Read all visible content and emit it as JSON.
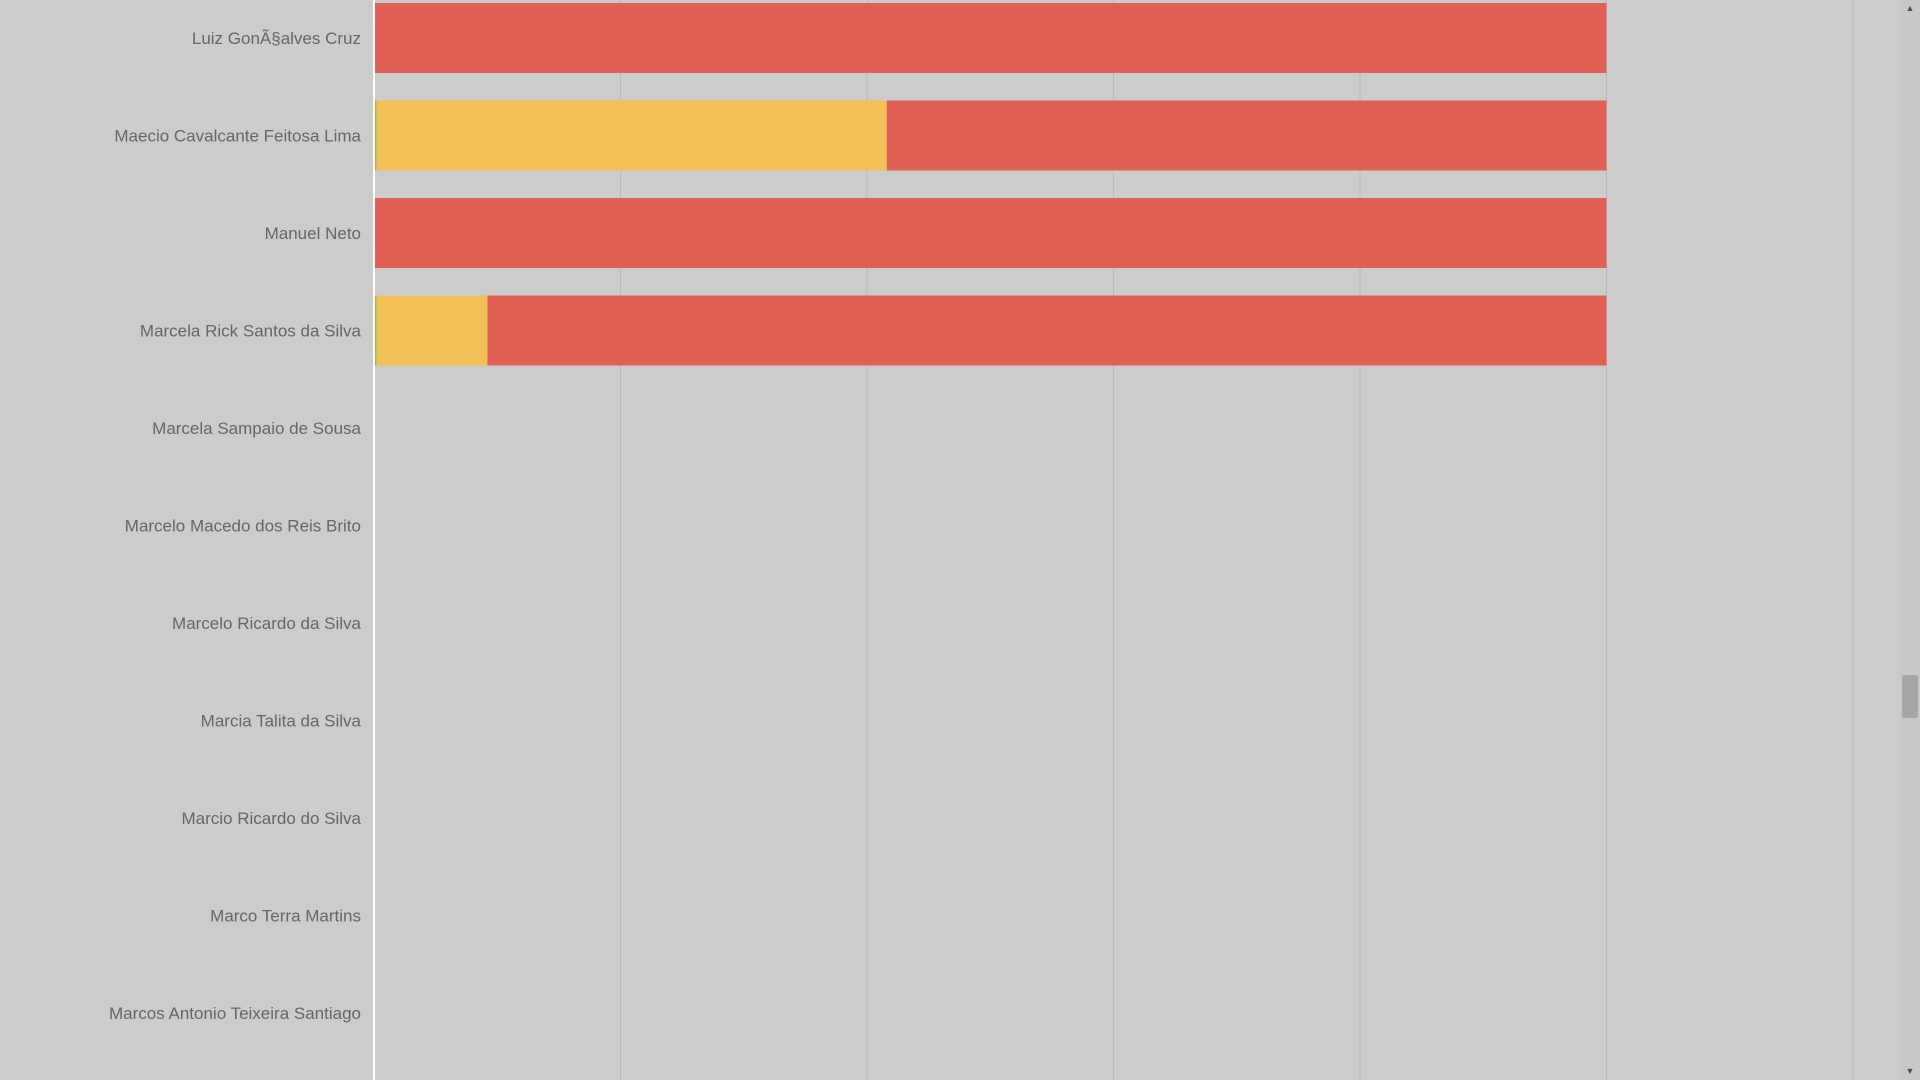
{
  "chart_data": {
    "type": "bar",
    "orientation": "horizontal",
    "stacked": true,
    "title": "",
    "xlabel": "",
    "ylabel": "",
    "xlim": [
      0,
      6
    ],
    "grid": true,
    "categories": [
      "Luiz GonÃ§alves Cruz",
      "Maecio Cavalcante Feitosa Lima",
      "Manuel Neto",
      "Marcela Rick Santos da Silva",
      "Marcela Sampaio de Sousa",
      "Marcelo Macedo dos Reis Brito",
      "Marcelo Ricardo da Silva",
      "Marcia Talita da Silva",
      "Marcio Ricardo do Silva",
      "Marco Terra Martins",
      "Marcos Antonio Teixeira Santiago"
    ],
    "series": [
      {
        "color": "#8bc34a",
        "values": [
          0,
          0.01,
          0,
          0.01,
          0,
          0,
          0,
          0,
          0,
          0,
          0
        ]
      },
      {
        "color": "#f2c057",
        "values": [
          0,
          2.07,
          0,
          0.45,
          0,
          0,
          0,
          0,
          0,
          0,
          0
        ]
      },
      {
        "color": "#e06055",
        "values": [
          5,
          2.92,
          5,
          4.54,
          0,
          0,
          0,
          0,
          0,
          0,
          0
        ]
      }
    ]
  },
  "scrollbar": {
    "up_icon": "▲",
    "down_icon": "▼"
  }
}
